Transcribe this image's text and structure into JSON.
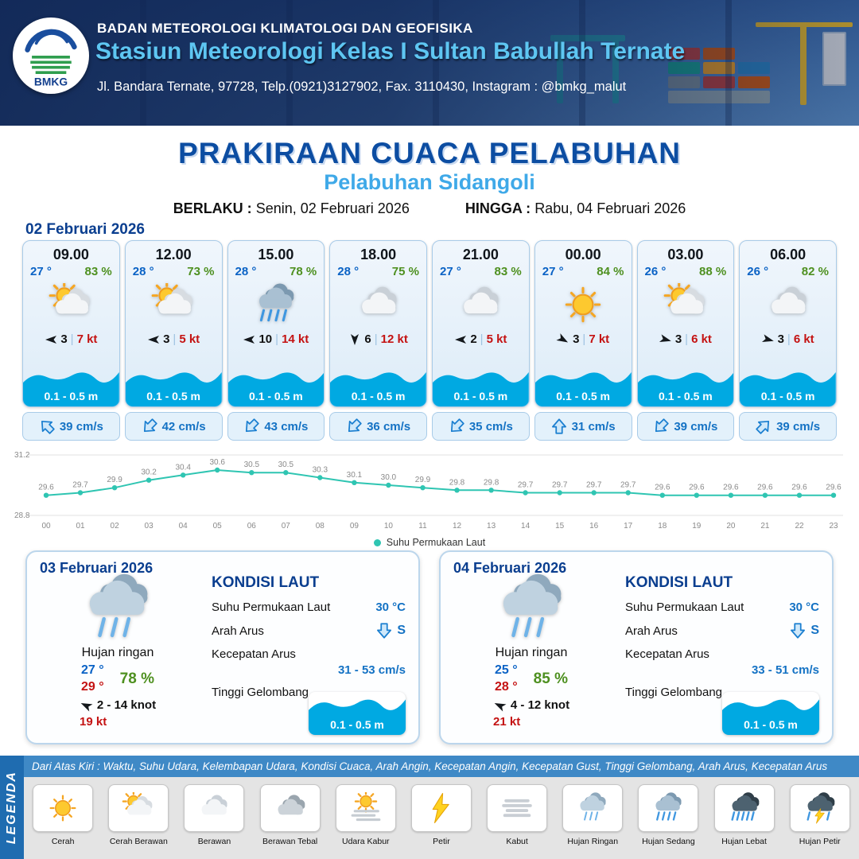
{
  "header": {
    "org": "BADAN METEOROLOGI KLIMATOLOGI DAN GEOFISIKA",
    "station": "Stasiun Meteorologi Kelas I Sultan Babullah Ternate",
    "address": "Jl. Bandara Ternate, 97728, Telp.(0921)3127902, Fax. 3110430, Instagram : @bmkg_malut",
    "logo_text": "BMKG"
  },
  "title": {
    "main": "PRAKIRAAN CUACA PELABUHAN",
    "subtitle": "Pelabuhan Sidangoli",
    "berlaku_label": "BERLAKU :",
    "berlaku_value": "Senin, 02 Februari 2026",
    "hingga_label": "HINGGA :",
    "hingga_value": "Rabu, 04 Februari 2026"
  },
  "forecast": {
    "date_label": "02 Februari 2026",
    "separator": "|",
    "cards": [
      {
        "time": "09.00",
        "temp": "27 °",
        "humidity": "83 %",
        "icon": "cerah-berawan",
        "wind_dir_deg": 180,
        "wind": "3",
        "gust": "7 kt",
        "wave": "0.1 - 0.5 m",
        "current_dir_deg": 315,
        "current": "39 cm/s"
      },
      {
        "time": "12.00",
        "temp": "28 °",
        "humidity": "73 %",
        "icon": "cerah-berawan",
        "wind_dir_deg": 180,
        "wind": "3",
        "gust": "5 kt",
        "wave": "0.1 - 0.5 m",
        "current_dir_deg": 225,
        "current": "42 cm/s"
      },
      {
        "time": "15.00",
        "temp": "28 °",
        "humidity": "78 %",
        "icon": "hujan-sedang",
        "wind_dir_deg": 180,
        "wind": "10",
        "gust": "14 kt",
        "wave": "0.1 - 0.5 m",
        "current_dir_deg": 225,
        "current": "43 cm/s"
      },
      {
        "time": "18.00",
        "temp": "28 °",
        "humidity": "75 %",
        "icon": "berawan",
        "wind_dir_deg": 90,
        "wind": "6",
        "gust": "12 kt",
        "wave": "0.1 - 0.5 m",
        "current_dir_deg": 225,
        "current": "36 cm/s"
      },
      {
        "time": "21.00",
        "temp": "27 °",
        "humidity": "83 %",
        "icon": "berawan",
        "wind_dir_deg": 180,
        "wind": "2",
        "gust": "5 kt",
        "wave": "0.1 - 0.5 m",
        "current_dir_deg": 225,
        "current": "35 cm/s"
      },
      {
        "time": "00.00",
        "temp": "27 °",
        "humidity": "84 %",
        "icon": "cerah",
        "wind_dir_deg": 30,
        "wind": "3",
        "gust": "7 kt",
        "wave": "0.1 - 0.5 m",
        "current_dir_deg": 0,
        "current": "31 cm/s"
      },
      {
        "time": "03.00",
        "temp": "26 °",
        "humidity": "88 %",
        "icon": "cerah-berawan",
        "wind_dir_deg": 15,
        "wind": "3",
        "gust": "6 kt",
        "wave": "0.1 - 0.5 m",
        "current_dir_deg": 225,
        "current": "39 cm/s"
      },
      {
        "time": "06.00",
        "temp": "26 °",
        "humidity": "82 %",
        "icon": "berawan",
        "wind_dir_deg": 15,
        "wind": "3",
        "gust": "6 kt",
        "wave": "0.1 - 0.5 m",
        "current_dir_deg": 45,
        "current": "39 cm/s"
      }
    ]
  },
  "chart_data": {
    "type": "line",
    "series_name": "Suhu Permukaan Laut",
    "x": [
      "00",
      "01",
      "02",
      "03",
      "04",
      "05",
      "06",
      "07",
      "08",
      "09",
      "10",
      "11",
      "12",
      "13",
      "14",
      "15",
      "16",
      "17",
      "18",
      "19",
      "20",
      "21",
      "22",
      "23"
    ],
    "values": [
      29.6,
      29.7,
      29.9,
      30.2,
      30.4,
      30.6,
      30.5,
      30.5,
      30.3,
      30.1,
      30.0,
      29.9,
      29.8,
      29.8,
      29.7,
      29.7,
      29.7,
      29.7,
      29.6,
      29.6,
      29.6,
      29.6,
      29.6,
      29.6
    ],
    "ylim": [
      28.8,
      31.2
    ],
    "line_color": "#2fc5b2",
    "grid": true,
    "legend_position": "bottom"
  },
  "labels": {
    "kondisi_laut": "KONDISI LAUT",
    "sst": "Suhu Permukaan Laut",
    "arah_arus": "Arah Arus",
    "kecepatan_arus": "Kecepatan Arus",
    "tinggi_gelombang": "Tinggi Gelombang"
  },
  "days": [
    {
      "date": "03 Februari 2026",
      "icon": "hujan-ringan",
      "condition": "Hujan ringan",
      "temp_min": "27 °",
      "temp_max": "29 °",
      "humidity": "78 %",
      "wind": "2  - 14 knot",
      "wind_dir_deg": 205,
      "gust": "19 kt",
      "sst": "30 °C",
      "current_dir": "S",
      "current_dir_deg": 180,
      "current_speed": "31  - 53 cm/s",
      "wave": "0.1 - 0.5 m"
    },
    {
      "date": "04 Februari 2026",
      "icon": "hujan-ringan",
      "condition": "Hujan ringan",
      "temp_min": "25 °",
      "temp_max": "28 °",
      "humidity": "85 %",
      "wind": "4  - 12 knot",
      "wind_dir_deg": 205,
      "gust": "21 kt",
      "sst": "30 °C",
      "current_dir": "S",
      "current_dir_deg": 180,
      "current_speed": "33  - 51 cm/s",
      "wave": "0.1 - 0.5 m"
    }
  ],
  "legend": {
    "vertical_label": "LEGENDA",
    "note": "Dari Atas Kiri : Waktu, Suhu Udara, Kelembapan Udara, Kondisi Cuaca, Arah Angin, Kecepatan Angin, Kecepatan Gust, Tinggi Gelombang, Arah Arus, Kecepatan Arus",
    "items": [
      {
        "label": "Cerah",
        "icon": "cerah"
      },
      {
        "label": "Cerah Berawan",
        "icon": "cerah-berawan"
      },
      {
        "label": "Berawan",
        "icon": "berawan"
      },
      {
        "label": "Berawan Tebal",
        "icon": "berawan-tebal"
      },
      {
        "label": "Udara Kabur",
        "icon": "udara-kabur"
      },
      {
        "label": "Petir",
        "icon": "petir"
      },
      {
        "label": "Kabut",
        "icon": "kabut"
      },
      {
        "label": "Hujan Ringan",
        "icon": "hujan-ringan"
      },
      {
        "label": "Hujan Sedang",
        "icon": "hujan-sedang"
      },
      {
        "label": "Hujan Lebat",
        "icon": "hujan-lebat"
      },
      {
        "label": "Hujan Petir",
        "icon": "hujan-petir"
      }
    ]
  },
  "colors": {
    "accent_blue": "#0c4da2",
    "subtitle_blue": "#3fa9e8",
    "temp_blue": "#0a62c5",
    "humidity_green": "#4e9020",
    "gust_red": "#c41212",
    "wave_blue": "#00a9e2",
    "current_blue": "#1472c4",
    "chart_line": "#2fc5b2"
  }
}
